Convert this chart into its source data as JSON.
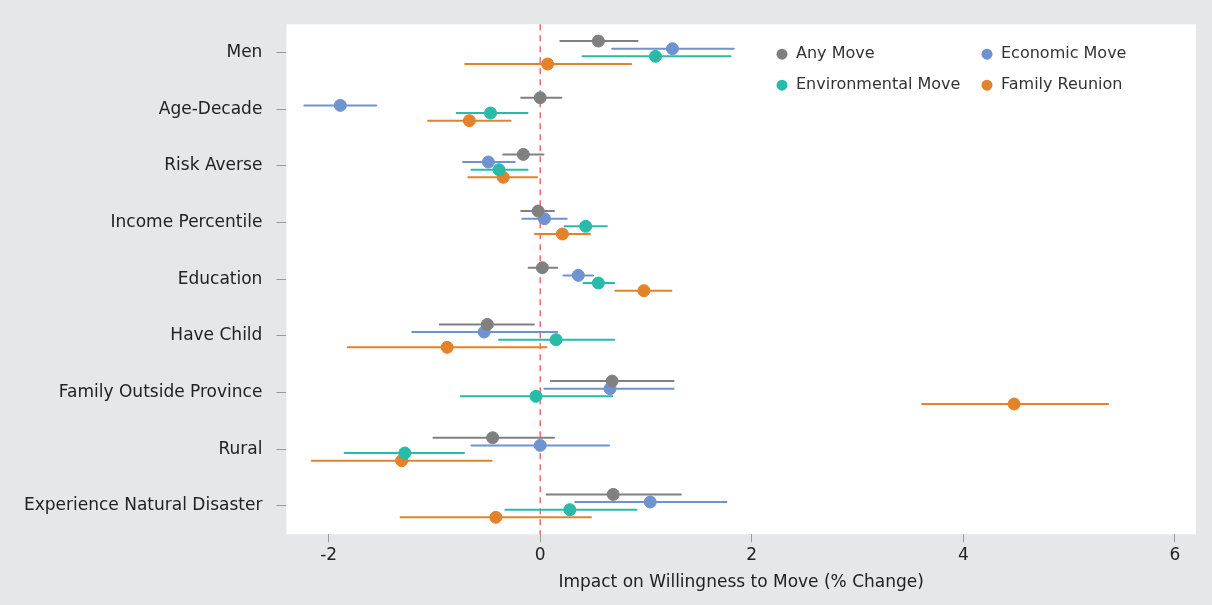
{
  "chart_data": {
    "type": "scatter",
    "orientation": "horizontal",
    "xlabel": "Impact on Willingness to Move (% Change)",
    "categories": [
      "Men",
      "Age-Decade",
      "Risk Averse",
      "Income Percentile",
      "Education",
      "Have Child",
      "Family Outside Province",
      "Rural",
      "Experience Natural Disaster"
    ],
    "xlim": [
      -2.4,
      6.2
    ],
    "xticks": [
      -2,
      0,
      2,
      4,
      6
    ],
    "grid": false,
    "legend": "top right",
    "marker": "circle",
    "ref_lines": [
      {
        "axis": "x",
        "value": 0,
        "color": "#e8706a",
        "line_style": "dashed"
      }
    ],
    "series": [
      {
        "name": "Any Move",
        "color": "#808080",
        "values": [
          0.55,
          0.0,
          -0.16,
          -0.02,
          0.02,
          -0.5,
          0.68,
          -0.45,
          0.69
        ],
        "errors": [
          [
            0.19,
            0.92
          ],
          [
            -0.18,
            0.2
          ],
          [
            -0.35,
            0.03
          ],
          [
            -0.18,
            0.13
          ],
          [
            -0.11,
            0.16
          ],
          [
            -0.95,
            -0.06
          ],
          [
            0.1,
            1.26
          ],
          [
            -1.01,
            0.13
          ],
          [
            0.06,
            1.33
          ]
        ]
      },
      {
        "name": "Economic Move",
        "color": "#6f93d0",
        "values": [
          1.25,
          -1.89,
          -0.49,
          0.04,
          0.36,
          -0.53,
          0.66,
          0.0,
          1.04
        ],
        "errors": [
          [
            0.68,
            1.83
          ],
          [
            -2.23,
            -1.55
          ],
          [
            -0.73,
            -0.24
          ],
          [
            -0.17,
            0.25
          ],
          [
            0.22,
            0.5
          ],
          [
            -1.21,
            0.16
          ],
          [
            0.04,
            1.26
          ],
          [
            -0.65,
            0.65
          ],
          [
            0.33,
            1.76
          ]
        ]
      },
      {
        "name": "Environmental Move",
        "color": "#26bca9",
        "values": [
          1.09,
          -0.47,
          -0.39,
          0.43,
          0.55,
          0.15,
          -0.04,
          -1.28,
          0.28
        ],
        "errors": [
          [
            0.4,
            1.8
          ],
          [
            -0.79,
            -0.12
          ],
          [
            -0.65,
            -0.12
          ],
          [
            0.23,
            0.63
          ],
          [
            0.41,
            0.7
          ],
          [
            -0.39,
            0.7
          ],
          [
            -0.75,
            0.68
          ],
          [
            -1.85,
            -0.72
          ],
          [
            -0.33,
            0.91
          ]
        ]
      },
      {
        "name": "Family Reunion",
        "color": "#e3822a",
        "values": [
          0.07,
          -0.67,
          -0.35,
          0.21,
          0.98,
          -0.88,
          4.48,
          -1.31,
          -0.42
        ],
        "errors": [
          [
            -0.71,
            0.86
          ],
          [
            -1.06,
            -0.28
          ],
          [
            -0.68,
            -0.03
          ],
          [
            -0.05,
            0.47
          ],
          [
            0.71,
            1.24
          ],
          [
            -1.82,
            0.06
          ],
          [
            3.61,
            5.37
          ],
          [
            -2.16,
            -0.46
          ],
          [
            -1.32,
            0.48
          ]
        ]
      }
    ]
  }
}
